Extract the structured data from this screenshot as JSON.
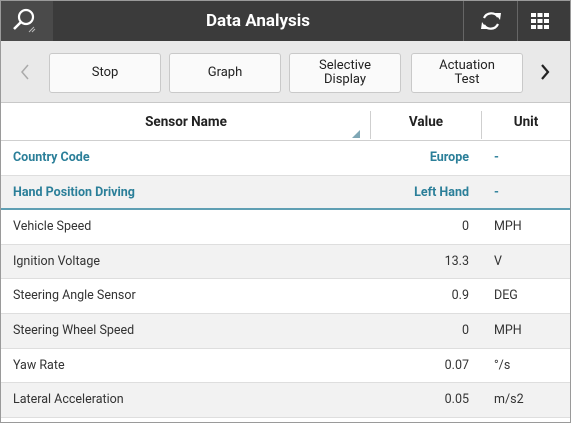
{
  "header": {
    "title": "Data Analysis"
  },
  "toolbar": {
    "buttons": [
      "Stop",
      "Graph",
      "Selective Display",
      "Actuation Test"
    ]
  },
  "table": {
    "columns": [
      "Sensor Name",
      "Value",
      "Unit"
    ],
    "rows": [
      [
        "Country Code",
        "Europe",
        "-"
      ],
      [
        "Hand Position Driving",
        "Left Hand",
        "-"
      ],
      [
        "Vehicle Speed",
        "0",
        "MPH"
      ],
      [
        "Ignition Voltage",
        "13.3",
        "V"
      ],
      [
        "Steering Angle Sensor",
        "0.9",
        "DEG"
      ],
      [
        "Steering Wheel Speed",
        "0",
        "MPH"
      ],
      [
        "Yaw Rate",
        "0.07",
        "°/s"
      ],
      [
        "Lateral Acceleration",
        "0.05",
        "m/s2"
      ]
    ]
  }
}
